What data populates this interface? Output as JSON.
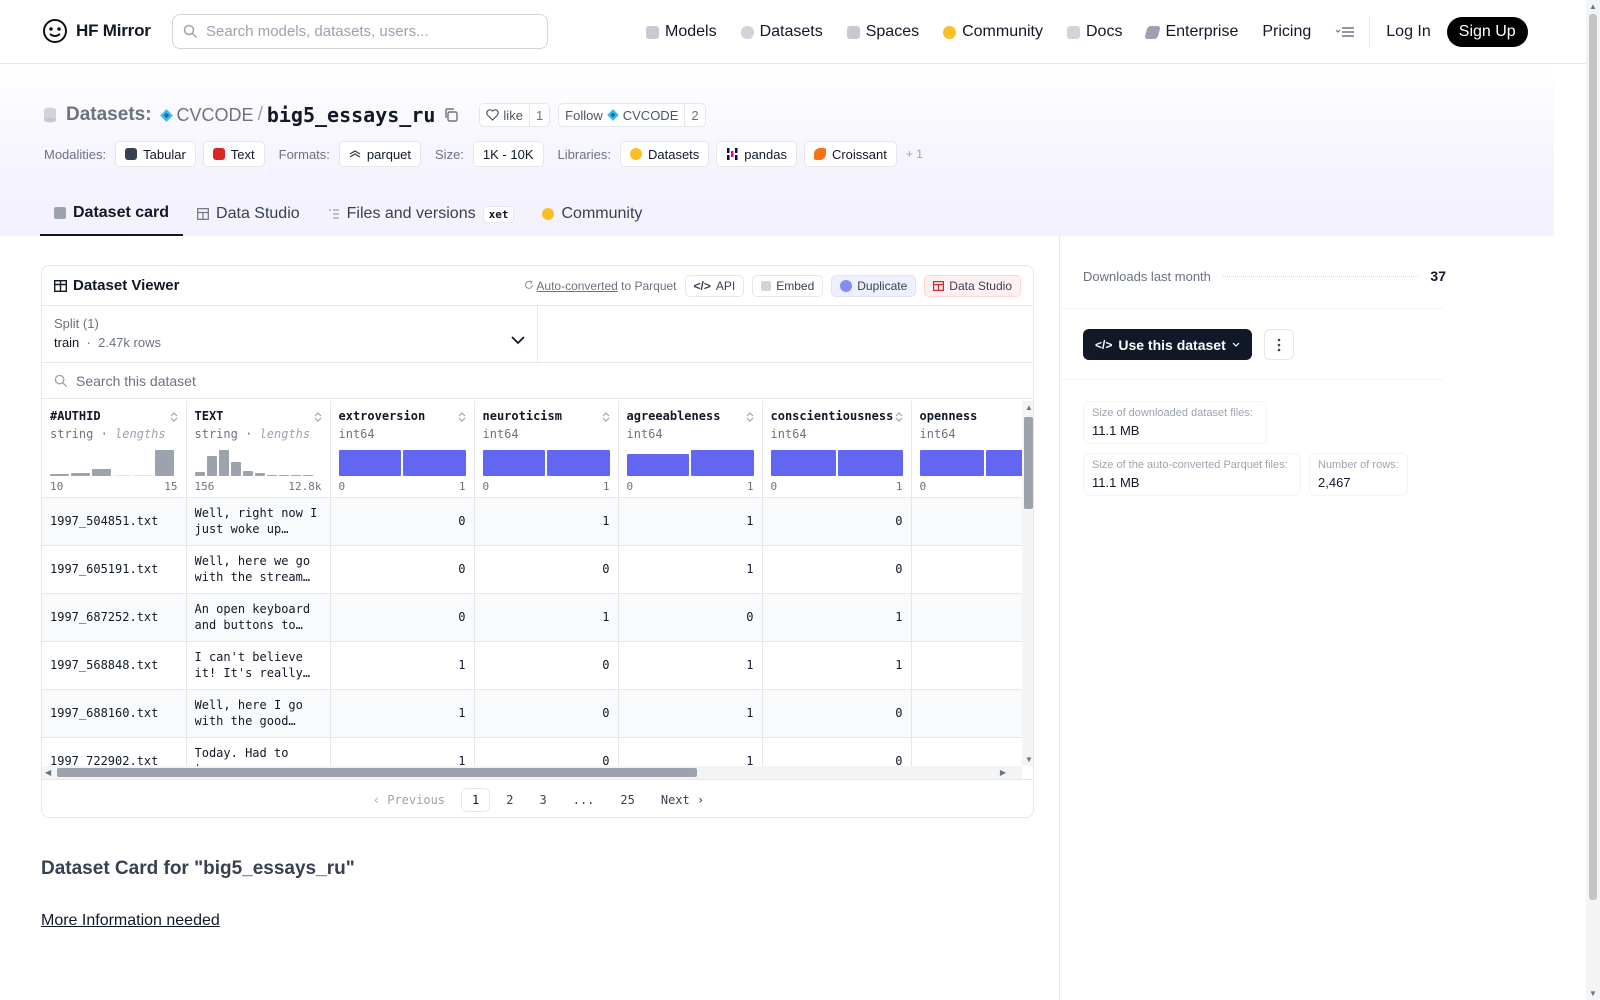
{
  "nav": {
    "brand": "HF Mirror",
    "search_placeholder": "Search models, datasets, users...",
    "links": [
      "Models",
      "Datasets",
      "Spaces",
      "Community",
      "Docs",
      "Enterprise",
      "Pricing"
    ],
    "login": "Log In",
    "signup": "Sign Up"
  },
  "header": {
    "label": "Datasets:",
    "org": "CVCODE",
    "slash": "/",
    "name": "big5_essays_ru",
    "like_label": "like",
    "like_count": "1",
    "follow_label": "Follow",
    "follow_org": "CVCODE",
    "follow_count": "2",
    "modalities_label": "Modalities:",
    "modality_tabular": "Tabular",
    "modality_text": "Text",
    "formats_label": "Formats:",
    "format_parquet": "parquet",
    "size_label": "Size:",
    "size_value": "1K - 10K",
    "libraries_label": "Libraries:",
    "lib_datasets": "Datasets",
    "lib_pandas": "pandas",
    "lib_croissant": "Croissant",
    "more_libs": "+ 1"
  },
  "tabs": {
    "card": "Dataset card",
    "studio": "Data Studio",
    "files": "Files and versions",
    "xet": "xet",
    "community": "Community"
  },
  "viewer": {
    "title": "Dataset Viewer",
    "auto_converted": "Auto-converted",
    "to_parquet": "to Parquet",
    "api": "API",
    "embed": "Embed",
    "duplicate": "Duplicate",
    "data_studio": "Data Studio",
    "split_label": "Split (1)",
    "split_name": "train",
    "split_sep": "·",
    "split_rows": "2.47k rows",
    "search_placeholder": "Search this dataset",
    "columns": [
      {
        "name": "#AUTHID",
        "type": "string",
        "sub": "lengths",
        "min": "10",
        "max": "15"
      },
      {
        "name": "TEXT",
        "type": "string",
        "sub": "lengths",
        "min": "156",
        "max": "12.8k"
      },
      {
        "name": "extroversion",
        "type": "int64",
        "min": "0",
        "max": "1"
      },
      {
        "name": "neuroticism",
        "type": "int64",
        "min": "0",
        "max": "1"
      },
      {
        "name": "agreeableness",
        "type": "int64",
        "min": "0",
        "max": "1"
      },
      {
        "name": "conscientiousness",
        "type": "int64",
        "min": "0",
        "max": "1"
      },
      {
        "name": "openness",
        "type": "int64",
        "min": "0",
        "max": ""
      }
    ],
    "rows": [
      {
        "id": "1997_504851.txt",
        "text": "Well, right now I just woke up from…",
        "e": "0",
        "n": "1",
        "a": "1",
        "c": "0"
      },
      {
        "id": "1997_605191.txt",
        "text": "Well, here we go with the stream o…",
        "e": "0",
        "n": "0",
        "a": "1",
        "c": "0"
      },
      {
        "id": "1997_687252.txt",
        "text": "An open keyboard and buttons to…",
        "e": "0",
        "n": "1",
        "a": "0",
        "c": "1"
      },
      {
        "id": "1997_568848.txt",
        "text": "I can't believe it! It's really…",
        "e": "1",
        "n": "0",
        "a": "1",
        "c": "1"
      },
      {
        "id": "1997_688160.txt",
        "text": "Well, here I go with the good old…",
        "e": "1",
        "n": "0",
        "a": "1",
        "c": "0"
      },
      {
        "id": "1997_722902.txt",
        "text": "Today. Had to turn",
        "e": "1",
        "n": "0",
        "a": "1",
        "c": "0"
      }
    ],
    "pager": {
      "prev": "Previous",
      "pages": [
        "1",
        "2",
        "3",
        "...",
        "25"
      ],
      "next": "Next"
    }
  },
  "card": {
    "title": "Dataset Card for \"big5_essays_ru\"",
    "more_info": "More Information needed"
  },
  "sidebar": {
    "downloads_label": "Downloads last month",
    "downloads_value": "37",
    "use_button": "Use this dataset",
    "dl_size_label": "Size of downloaded dataset files:",
    "dl_size_value": "11.1 MB",
    "pq_size_label": "Size of the auto-converted Parquet files:",
    "pq_size_value": "11.1 MB",
    "rows_label": "Number of rows:",
    "rows_value": "2,467"
  },
  "colors": {
    "accent": "#6366f1",
    "hist_gray": "#9ca3af",
    "dark": "#111827"
  },
  "histograms": {
    "authid_levels": [
      0.08,
      0.1,
      0.25,
      0.0,
      0.0,
      1.0
    ],
    "text_levels": [
      0.15,
      0.75,
      1.0,
      0.55,
      0.2,
      0.1,
      0.05,
      0.05,
      0.05,
      0.05
    ]
  }
}
